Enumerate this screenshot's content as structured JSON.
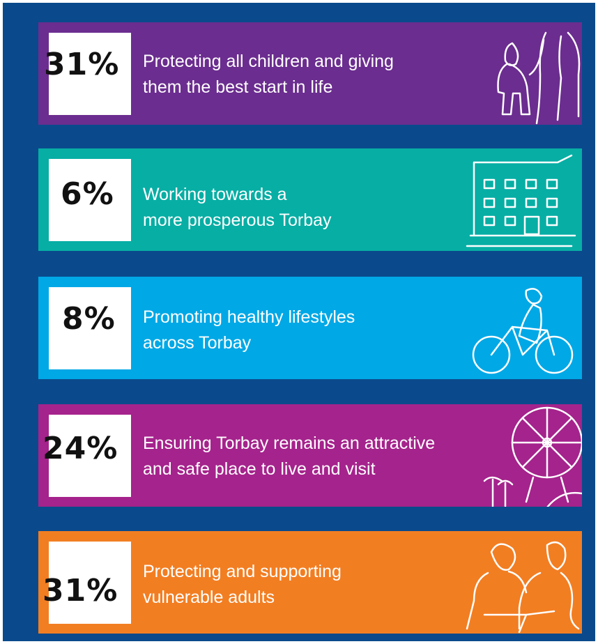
{
  "items": [
    {
      "percent": "31%",
      "lines": [
        "Protecting all children and giving",
        "them the best start in life"
      ]
    },
    {
      "percent": "6%",
      "lines": [
        "Working towards a",
        "more prosperous Torbay"
      ]
    },
    {
      "percent": "8%",
      "lines": [
        "Promoting healthy lifestyles",
        "across Torbay"
      ]
    },
    {
      "percent": "24%",
      "lines": [
        "Ensuring Torbay remains an attractive",
        "and safe place to live and visit"
      ]
    },
    {
      "percent": "31%",
      "lines": [
        "Protecting and supporting",
        "vulnerable adults"
      ]
    }
  ]
}
